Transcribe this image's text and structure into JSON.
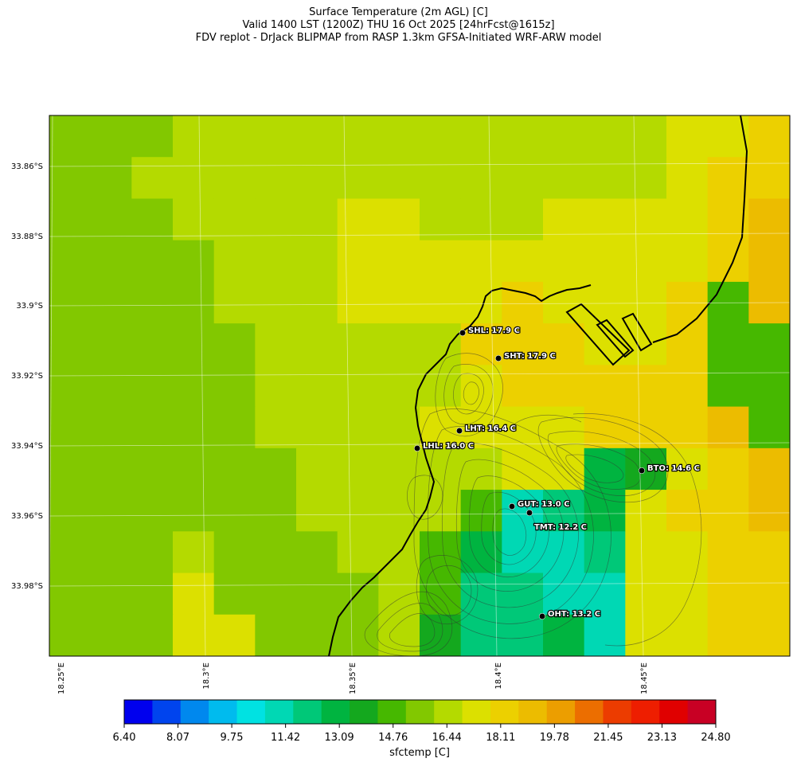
{
  "title": {
    "line1": "Surface Temperature (2m AGL) [C]",
    "line2": "Valid 1400 LST (1200Z) THU 16 Oct 2025 [24hrFcst@1615z]",
    "line3": "FDV replot - DrJack BLIPMAP from RASP 1.3km GFSA-Initiated WRF-ARW model"
  },
  "lat_labels": [
    "33.86°S",
    "33.88°S",
    "33.9°S",
    "33.92°S",
    "33.94°S",
    "33.96°S",
    "33.98°S"
  ],
  "lon_labels": [
    "18.25°E",
    "18.3°E",
    "18.35°E",
    "18.4°E",
    "18.45°E"
  ],
  "stations": [
    {
      "id": "SHL",
      "label": "SHL: 17.9 C"
    },
    {
      "id": "SHT",
      "label": "SHT: 17.9 C"
    },
    {
      "id": "LHT",
      "label": "LHT: 16.4 C"
    },
    {
      "id": "LHL",
      "label": "LHL: 16.0 C"
    },
    {
      "id": "BTO",
      "label": "BTO: 14.6 C"
    },
    {
      "id": "GUT",
      "label": "GUT: 13.0 C"
    },
    {
      "id": "TMT",
      "label": "TMT: 12.2 C"
    },
    {
      "id": "OHT",
      "label": "OHT: 13.2 C"
    }
  ],
  "colorbar": {
    "ticks": [
      "6.40",
      "8.07",
      "9.75",
      "11.42",
      "13.09",
      "14.76",
      "16.44",
      "18.11",
      "19.78",
      "21.45",
      "23.13",
      "24.80"
    ],
    "label": "sfctemp [C]",
    "colors": [
      "#0000ee",
      "#0044ee",
      "#0088ee",
      "#00bbee",
      "#00e2e2",
      "#00d8b4",
      "#00c878",
      "#00b440",
      "#14a81e",
      "#46b800",
      "#82c800",
      "#b4da00",
      "#dce000",
      "#ecd000",
      "#ecbc00",
      "#ec9e00",
      "#ec6e00",
      "#ec3c00",
      "#ee1e00",
      "#e00000",
      "#c80024"
    ]
  }
}
